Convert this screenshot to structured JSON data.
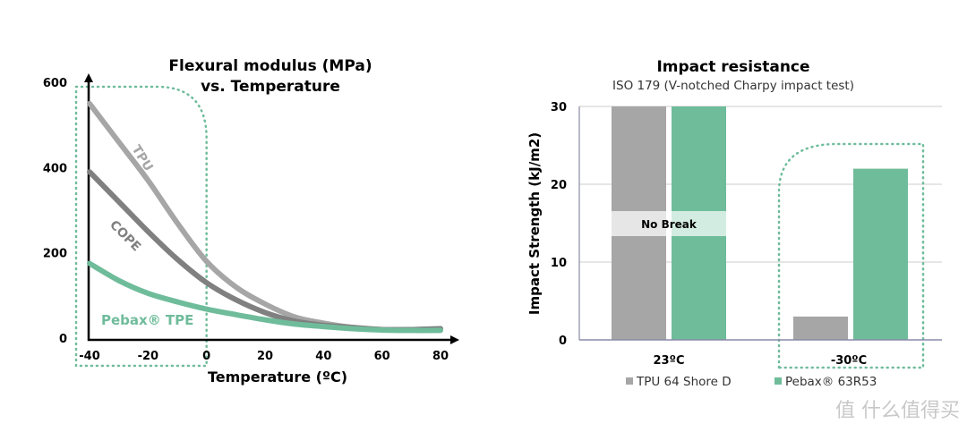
{
  "colors": {
    "tpu": "#a6a6a6",
    "cope": "#808080",
    "pebax": "#6fbc9b",
    "pebax_light": "#d3ece1",
    "tpu_light": "#e6e6e6",
    "highlight": "#6fbc9b"
  },
  "watermark": "值 什么值得买",
  "chart_data": [
    {
      "type": "line",
      "title": "Flexural modulus (MPa)",
      "subtitle": "vs. Temperature",
      "xlabel": "Temperature (ºC)",
      "ylabel": "",
      "xlim": [
        -40,
        80
      ],
      "ylim": [
        0,
        600
      ],
      "xticks": [
        "-40",
        "-20",
        "0",
        "20",
        "40",
        "60",
        "80"
      ],
      "yticks": [
        "0",
        "200",
        "400",
        "600"
      ],
      "grid": false,
      "highlight_range_x": [
        -40,
        0
      ],
      "x": [
        -40,
        -30,
        -20,
        -10,
        0,
        10,
        20,
        30,
        40,
        50,
        60,
        70,
        80
      ],
      "series": [
        {
          "name": "TPU",
          "color": "#a6a6a6",
          "values": [
            550,
            460,
            370,
            270,
            180,
            120,
            80,
            50,
            35,
            25,
            20,
            20,
            22
          ]
        },
        {
          "name": "COPE",
          "color": "#808080",
          "values": [
            390,
            320,
            250,
            185,
            130,
            90,
            60,
            40,
            30,
            25,
            20,
            20,
            22
          ]
        },
        {
          "name": "Pebax® TPE",
          "color": "#6fbc9b",
          "values": [
            175,
            135,
            105,
            85,
            68,
            55,
            43,
            33,
            27,
            22,
            19,
            18,
            18
          ]
        }
      ]
    },
    {
      "type": "bar",
      "title": "Impact resistance",
      "subtitle": "ISO 179 (V-notched Charpy impact test)",
      "xlabel": "",
      "ylabel": "Impact Strength (kJ/m2)",
      "ylim": [
        0,
        30
      ],
      "yticks": [
        "0",
        "10",
        "20",
        "30"
      ],
      "grid": true,
      "categories": [
        "23ºC",
        "-30ºC"
      ],
      "annotation": "No Break",
      "legend_position": "bottom",
      "highlight_category": "-30ºC",
      "series": [
        {
          "name": "TPU 64 Shore D",
          "color": "#a6a6a6",
          "values": [
            30,
            3
          ]
        },
        {
          "name": "Pebax® 63R53",
          "color": "#6fbc9b",
          "values": [
            30,
            22
          ]
        }
      ]
    }
  ]
}
